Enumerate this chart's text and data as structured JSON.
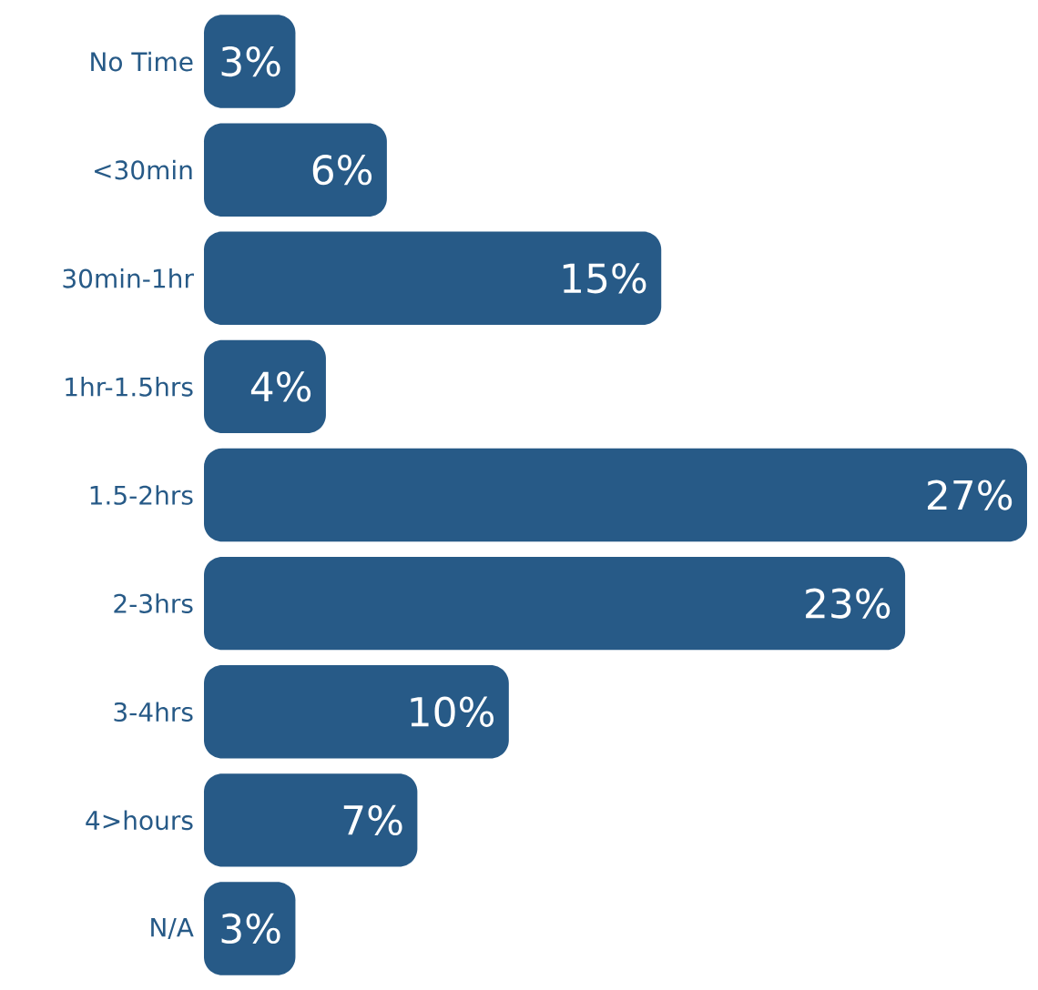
{
  "chart_data": {
    "type": "bar",
    "orientation": "horizontal",
    "categories": [
      "No Time",
      "<30min",
      "30min-1hr",
      "1hr-1.5hrs",
      "1.5-2hrs",
      "2-3hrs",
      "3-4hrs",
      "4>hours",
      "N/A"
    ],
    "values": [
      3,
      6,
      15,
      4,
      27,
      23,
      10,
      7,
      3
    ],
    "value_labels": [
      "3%",
      "6%",
      "15%",
      "4%",
      "27%",
      "23%",
      "10%",
      "7%",
      "3%"
    ],
    "color": "#275a87"
  }
}
